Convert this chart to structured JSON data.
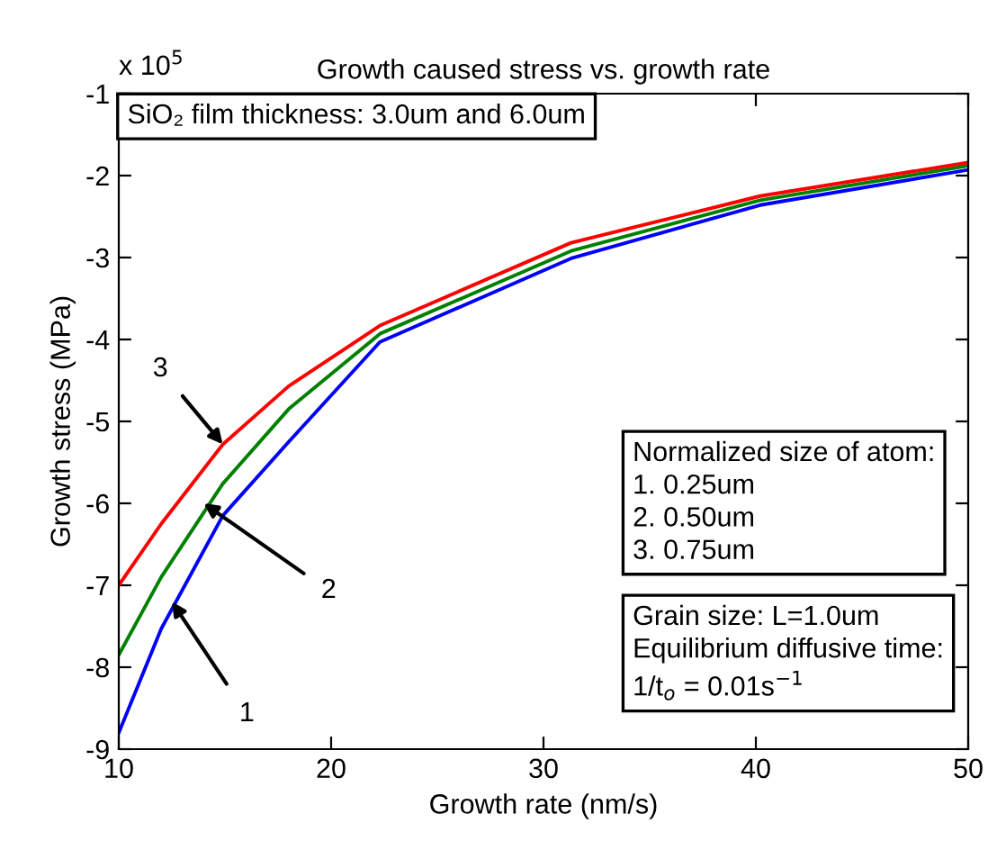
{
  "chart_data": {
    "type": "line",
    "title": "Growth caused stress vs. growth rate",
    "xlabel": "Growth rate (nm/s)",
    "ylabel": "Growth stress (MPa)",
    "x": [
      10,
      12,
      14.9,
      18,
      22.3,
      31.3,
      40.2,
      50
    ],
    "series": [
      {
        "color": "#0000ff",
        "values": [
          -8.8,
          -7.53,
          -6.15,
          -5.25,
          -4.03,
          -3.01,
          -2.36,
          -1.93
        ]
      },
      {
        "color": "#008000",
        "values": [
          -7.85,
          -6.9,
          -5.76,
          -4.85,
          -3.93,
          -2.92,
          -2.3,
          -1.88
        ]
      },
      {
        "color": "#ff0000",
        "values": [
          -7.0,
          -6.25,
          -5.28,
          -4.57,
          -3.83,
          -2.82,
          -2.25,
          -1.84
        ]
      }
    ],
    "xlim": [
      10,
      50
    ],
    "xticks": [
      10,
      20,
      30,
      40,
      50
    ],
    "ylim": [
      -9,
      -1
    ],
    "yticks": [
      -9,
      -8,
      -7,
      -6,
      -5,
      -4,
      -3,
      -2,
      -1
    ],
    "grid": false,
    "legend": false,
    "annotations": [
      "x 10$^{5}$",
      "SiO₂ film thickness: 3.0um and 6.0um",
      "Normalized size of atom:\n1. 0.25um\n2. 0.50um\n3. 0.75um",
      "Grain size: L=1.0um\nEquilibrium diffusive time:\n1/t$_{o}$ = 0.01s$^{−1}$",
      {
        "text": "1",
        "x": 12.5,
        "y": -7.2
      },
      {
        "text": "2",
        "x": 14.0,
        "y": -6.0
      },
      {
        "text": "3",
        "x": 14.9,
        "y": -5.28
      }
    ]
  }
}
